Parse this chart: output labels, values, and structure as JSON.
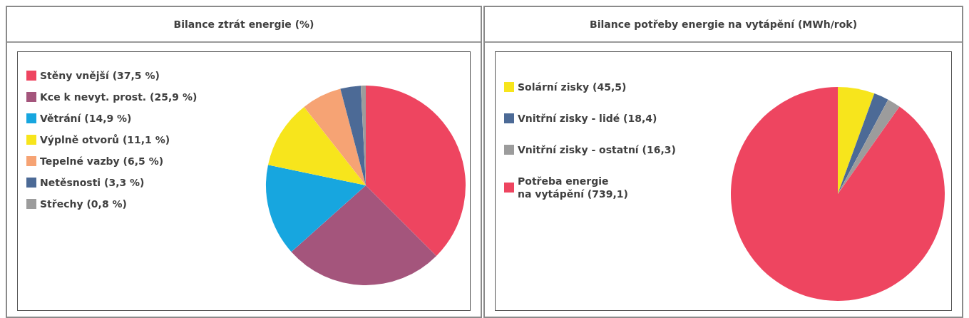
{
  "chart_data": [
    {
      "type": "pie",
      "title": "Bilance ztrát energie (%)",
      "legend": "left",
      "categories": [
        "Stěny vnější (37,5 %)",
        "Kce k nevyt. prost. (25,9 %)",
        "Větrání (14,9 %)",
        "Výplně otvorů (11,1 %)",
        "Tepelné vazby (6,5 %)",
        "Netěsnosti (3,3 %)",
        "Střechy (0,8 %)"
      ],
      "values": [
        37.5,
        25.9,
        14.9,
        11.1,
        6.5,
        3.3,
        0.8
      ],
      "colors": [
        "#ee4560",
        "#a4557c",
        "#17a6df",
        "#f7e51c",
        "#f6a374",
        "#4c6a96",
        "#9c9c9c"
      ]
    },
    {
      "type": "pie",
      "title": "Bilance potřeby energie na vytápění (MWh/rok)",
      "legend": "left",
      "categories": [
        "Solární zisky (45,5)",
        "Vnitřní zisky - lidé (18,4)",
        "Vnitřní zisky - ostatní (16,3)",
        "Potřeba energie\nna vytápění (739,1)"
      ],
      "values": [
        45.5,
        18.4,
        16.3,
        739.1
      ],
      "colors": [
        "#f7e51c",
        "#4c6a96",
        "#9c9c9c",
        "#ee4560"
      ]
    }
  ]
}
